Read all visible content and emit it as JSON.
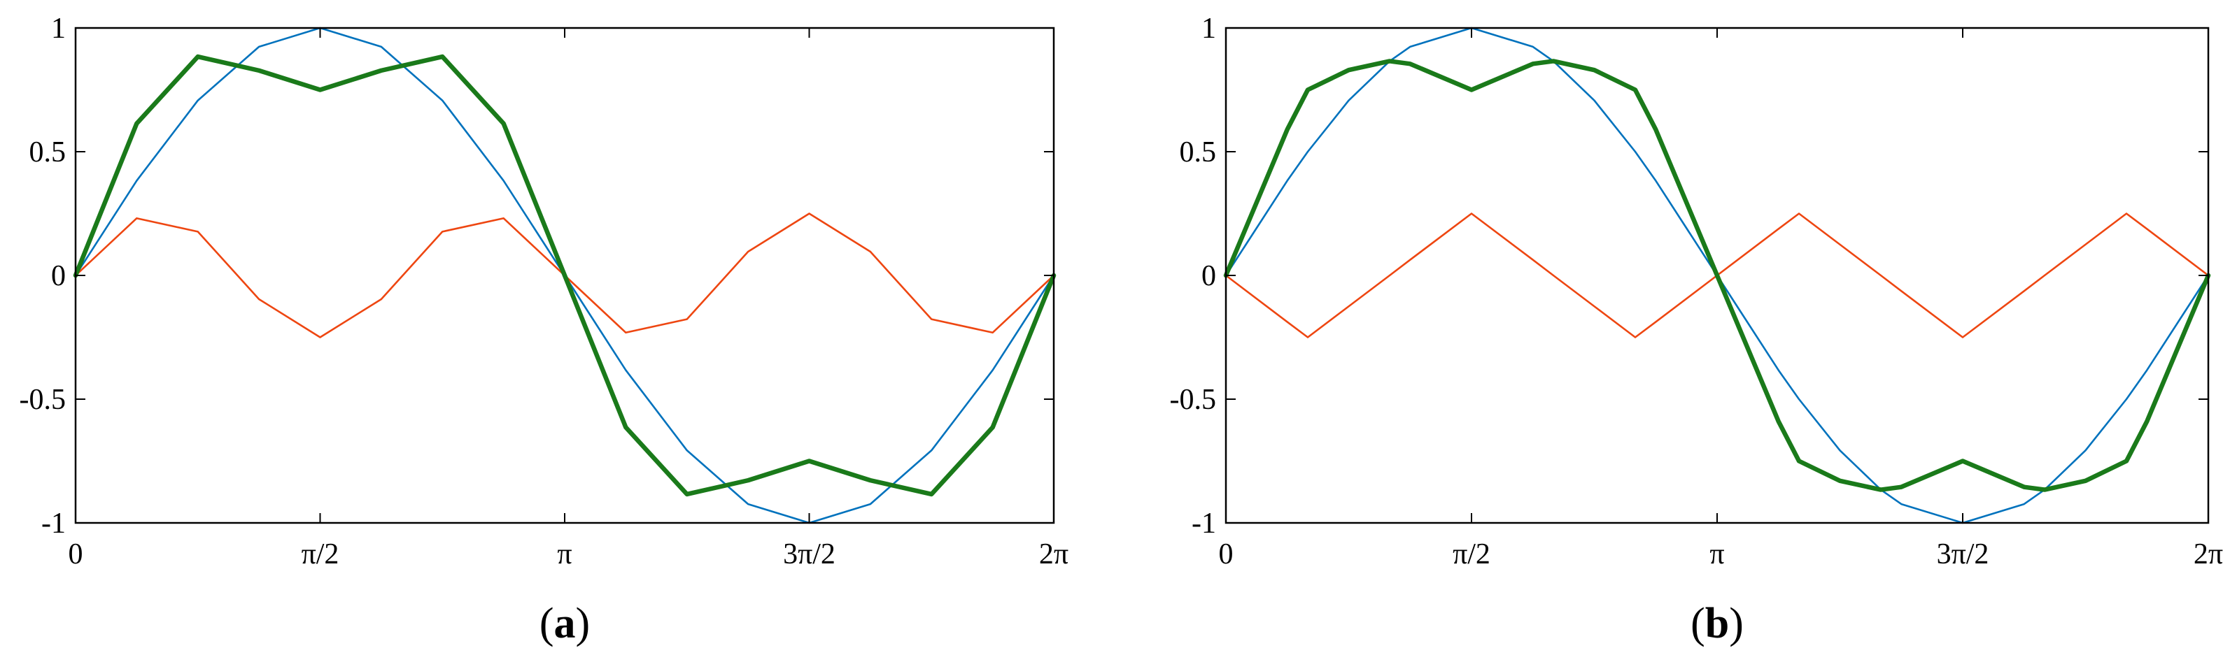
{
  "colors": {
    "fundamental": "#0072BD",
    "third_harmonic": "#EE4611",
    "sum": "#1A7A1A",
    "axis": "#000000",
    "background": "#FFFFFF"
  },
  "chart_data": [
    {
      "type": "line",
      "panel_label": "a",
      "xlim": [
        0,
        6.2832
      ],
      "ylim": [
        -1,
        1
      ],
      "grid": false,
      "x_ticks": [
        0,
        1.5708,
        3.1416,
        4.7124,
        6.2832
      ],
      "x_tick_labels": [
        "0",
        "π/2",
        "π",
        "3π/2",
        "2π"
      ],
      "y_ticks": [
        -1,
        -0.5,
        0,
        0.5,
        1
      ],
      "y_tick_labels": [
        "-1",
        "-0.5",
        "0",
        "0.5",
        "1"
      ],
      "x": [
        0,
        0.3927,
        0.7854,
        1.1781,
        1.5708,
        1.9635,
        2.3562,
        2.7489,
        3.1416,
        3.5343,
        3.927,
        4.3197,
        4.7124,
        5.1051,
        5.4978,
        5.8905,
        6.2832
      ],
      "series": [
        {
          "color_key": "fundamental",
          "width": "thin",
          "values": [
            0,
            0.383,
            0.707,
            0.924,
            1,
            0.924,
            0.707,
            0.383,
            0,
            -0.383,
            -0.707,
            -0.924,
            -1,
            -0.924,
            -0.707,
            -0.383,
            0
          ]
        },
        {
          "color_key": "third_harmonic",
          "width": "thin",
          "values": [
            0,
            0.231,
            0.177,
            -0.096,
            -0.25,
            -0.096,
            0.177,
            0.231,
            0,
            -0.231,
            -0.177,
            0.096,
            0.25,
            0.096,
            -0.177,
            -0.231,
            0
          ]
        },
        {
          "color_key": "sum",
          "width": "thick",
          "values": [
            0,
            0.614,
            0.884,
            0.828,
            0.75,
            0.828,
            0.884,
            0.614,
            0,
            -0.614,
            -0.884,
            -0.828,
            -0.75,
            -0.828,
            -0.884,
            -0.614,
            0
          ]
        }
      ]
    },
    {
      "type": "line",
      "panel_label": "b",
      "xlim": [
        0,
        6.2832
      ],
      "ylim": [
        -1,
        1
      ],
      "grid": false,
      "x_ticks": [
        0,
        1.5708,
        3.1416,
        4.7124,
        6.2832
      ],
      "x_tick_labels": [
        "0",
        "π/2",
        "π",
        "3π/2",
        "2π"
      ],
      "y_ticks": [
        -1,
        -0.5,
        0,
        0.5,
        1
      ],
      "y_tick_labels": [
        "-1",
        "-0.5",
        "0",
        "0.5",
        "1"
      ],
      "x": [
        0,
        0.3927,
        0.5236,
        0.7854,
        1.0472,
        1.1781,
        1.5708,
        1.9635,
        2.0944,
        2.3562,
        2.618,
        2.7489,
        3.1416,
        3.5343,
        3.6652,
        3.927,
        4.1888,
        4.3197,
        4.7124,
        5.1051,
        5.236,
        5.4978,
        5.7596,
        5.8905,
        6.2832
      ],
      "series": [
        {
          "color_key": "fundamental",
          "width": "thin",
          "values": [
            0,
            0.383,
            0.5,
            0.707,
            0.866,
            0.924,
            1,
            0.924,
            0.866,
            0.707,
            0.5,
            0.383,
            0,
            -0.383,
            -0.5,
            -0.707,
            -0.866,
            -0.924,
            -1,
            -0.924,
            -0.866,
            -0.707,
            -0.5,
            -0.383,
            0
          ]
        },
        {
          "color_key": "third_harmonic",
          "width": "thin",
          "values": [
            0,
            -0.188,
            -0.25,
            -0.125,
            0,
            0.063,
            0.25,
            0.063,
            0,
            -0.125,
            -0.25,
            -0.188,
            0,
            0.188,
            0.25,
            0.125,
            0,
            -0.063,
            -0.25,
            -0.063,
            0,
            0.125,
            0.25,
            0.188,
            0
          ]
        },
        {
          "color_key": "sum",
          "width": "thick",
          "values": [
            0,
            0.59,
            0.75,
            0.83,
            0.866,
            0.855,
            0.75,
            0.855,
            0.866,
            0.83,
            0.75,
            0.59,
            0,
            -0.59,
            -0.75,
            -0.83,
            -0.866,
            -0.855,
            -0.75,
            -0.855,
            -0.866,
            -0.83,
            -0.75,
            -0.59,
            0
          ]
        }
      ]
    }
  ]
}
